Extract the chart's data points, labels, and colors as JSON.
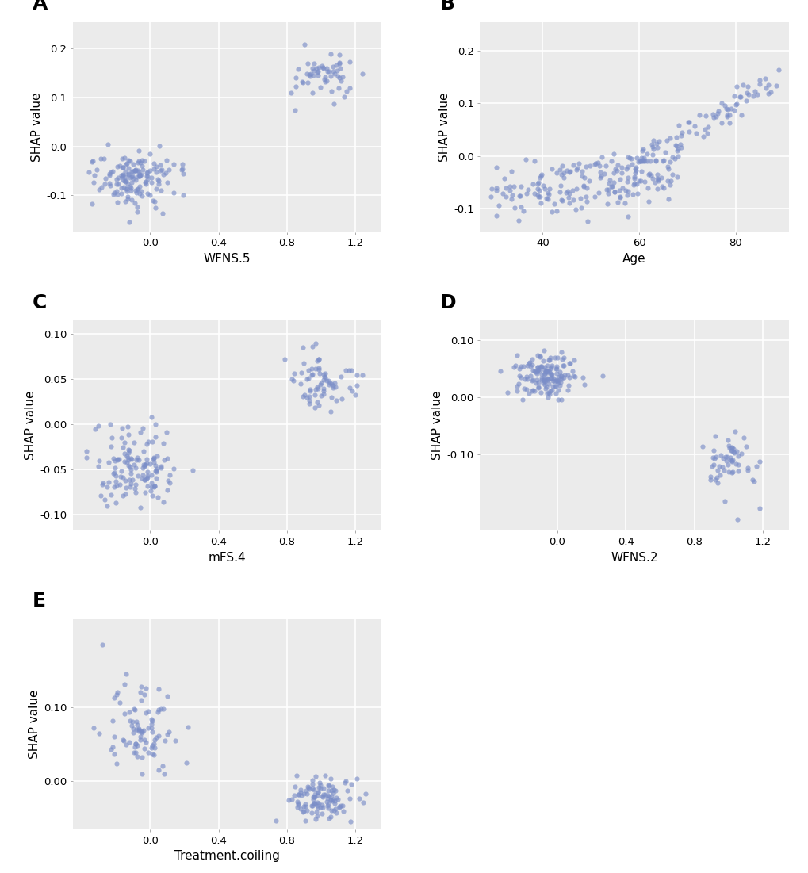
{
  "panels": [
    {
      "label": "A",
      "xlabel": "WFNS.5",
      "ylabel": "SHAP value",
      "xlim": [
        -0.45,
        1.35
      ],
      "ylim": [
        -0.175,
        0.255
      ],
      "xticks": [
        0.0,
        0.4,
        0.8,
        1.2
      ],
      "yticks": [
        -0.1,
        0.0,
        0.1,
        0.2
      ]
    },
    {
      "label": "B",
      "xlabel": "Age",
      "ylabel": "SHAP value",
      "xlim": [
        27,
        91
      ],
      "ylim": [
        -0.145,
        0.255
      ],
      "xticks": [
        40,
        60,
        80
      ],
      "yticks": [
        -0.1,
        0.0,
        0.1,
        0.2
      ]
    },
    {
      "label": "C",
      "xlabel": "mFS.4",
      "ylabel": "SHAP value",
      "xlim": [
        -0.45,
        1.35
      ],
      "ylim": [
        -0.118,
        0.115
      ],
      "xticks": [
        0.0,
        0.4,
        0.8,
        1.2
      ],
      "yticks": [
        -0.1,
        -0.05,
        0.0,
        0.05,
        0.1
      ]
    },
    {
      "label": "D",
      "xlabel": "WFNS.2",
      "ylabel": "SHAP value",
      "xlim": [
        -0.45,
        1.35
      ],
      "ylim": [
        -0.235,
        0.135
      ],
      "xticks": [
        0.0,
        0.4,
        0.8,
        1.2
      ],
      "yticks": [
        -0.1,
        0.0,
        0.1
      ]
    },
    {
      "label": "E",
      "xlabel": "Treatment.coiling",
      "ylabel": "SHAP value",
      "xlim": [
        -0.45,
        1.35
      ],
      "ylim": [
        -0.065,
        0.22
      ],
      "xticks": [
        0.0,
        0.4,
        0.8,
        1.2
      ],
      "yticks": [
        0.0,
        0.1
      ]
    }
  ],
  "dot_color": "#7b8ec8",
  "dot_alpha": 0.65,
  "dot_size": 20,
  "bg_color": "#ebebeb",
  "grid_color": "#ffffff",
  "label_fontsize": 18,
  "tick_fontsize": 9.5,
  "axis_label_fontsize": 11
}
